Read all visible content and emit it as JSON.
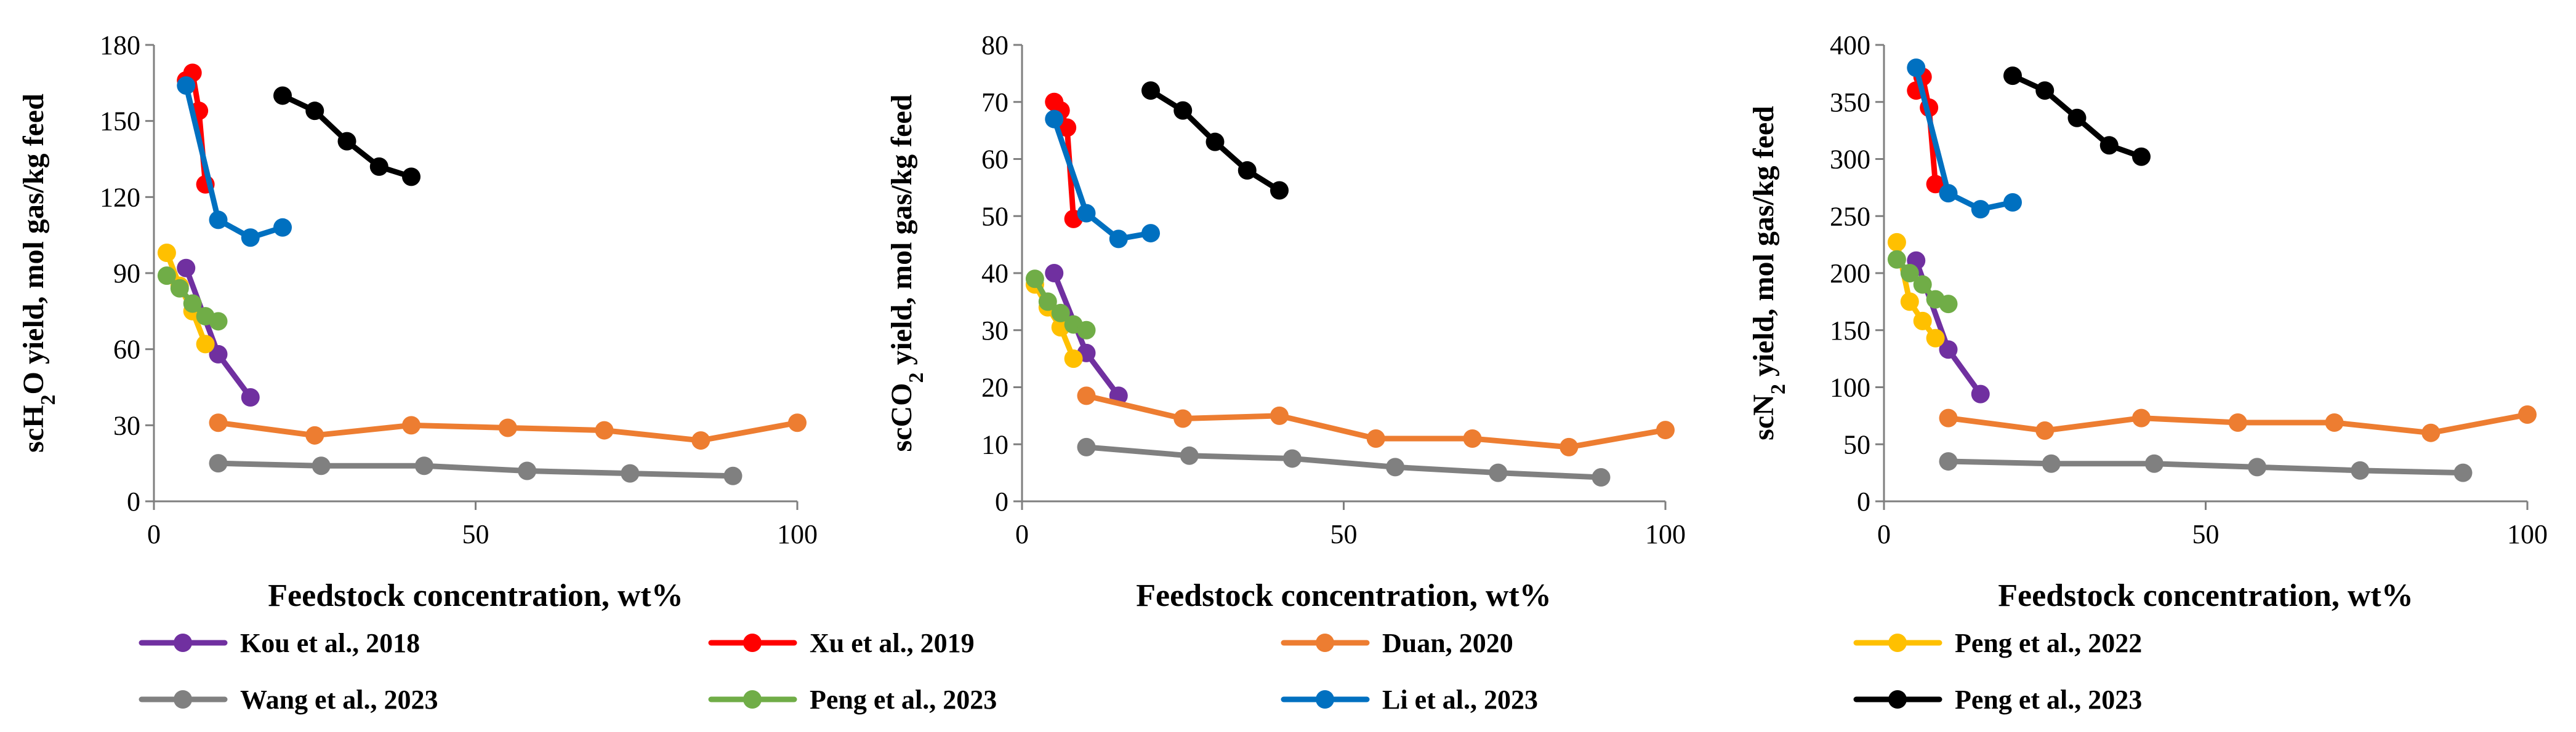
{
  "legend": [
    {
      "name": "Kou et al., 2018",
      "color": "#7030A0"
    },
    {
      "name": "Xu et al., 2019",
      "color": "#FF0000"
    },
    {
      "name": "Duan, 2020",
      "color": "#ED7D31"
    },
    {
      "name": "Peng et al., 2022",
      "color": "#FFC000"
    },
    {
      "name": "Wang et al., 2023",
      "color": "#808080"
    },
    {
      "name": "Peng et al., 2023",
      "color": "#70AD47"
    },
    {
      "name": "Li et al., 2023",
      "color": "#0070C0"
    },
    {
      "name": "Peng et al., 2023",
      "color": "#000000"
    }
  ],
  "chart_data": [
    {
      "type": "line",
      "xlabel": "Feedstock concentration, wt%",
      "ylabel": {
        "pre": "scH",
        "sub": "2",
        "post": "O yield, mol gas/kg feed"
      },
      "xlim": [
        0,
        100
      ],
      "ylim": [
        0,
        180
      ],
      "xticks": [
        0,
        50,
        100
      ],
      "yticks": [
        0,
        30,
        60,
        90,
        120,
        150,
        180
      ],
      "grid": false,
      "legend_position": "bottom",
      "series": [
        {
          "name": "Kou et al., 2018",
          "color": "#7030A0",
          "x": [
            5,
            10,
            15
          ],
          "y": [
            92,
            58,
            41
          ]
        },
        {
          "name": "Xu et al., 2019",
          "color": "#FF0000",
          "x": [
            5,
            6,
            7,
            8
          ],
          "y": [
            166,
            169,
            154,
            125
          ]
        },
        {
          "name": "Duan, 2020",
          "color": "#ED7D31",
          "x": [
            10,
            25,
            40,
            55,
            70,
            85,
            100
          ],
          "y": [
            31,
            26,
            30,
            29,
            28,
            24,
            31
          ]
        },
        {
          "name": "Peng et al., 2022",
          "color": "#FFC000",
          "x": [
            2,
            4,
            6,
            8
          ],
          "y": [
            98,
            85,
            75,
            62
          ]
        },
        {
          "name": "Wang et al., 2023",
          "color": "#808080",
          "x": [
            10,
            26,
            42,
            58,
            74,
            90
          ],
          "y": [
            15,
            14,
            14,
            12,
            11,
            10
          ]
        },
        {
          "name": "Peng et al., 2023",
          "color": "#70AD47",
          "x": [
            2,
            4,
            6,
            8,
            10
          ],
          "y": [
            89,
            84,
            78,
            73,
            71
          ]
        },
        {
          "name": "Li et al., 2023",
          "color": "#0070C0",
          "x": [
            5,
            10,
            15,
            20
          ],
          "y": [
            164,
            111,
            104,
            108
          ]
        },
        {
          "name": "Peng et al., 2023",
          "color": "#000000",
          "x": [
            20,
            25,
            30,
            35,
            40
          ],
          "y": [
            160,
            154,
            142,
            132,
            128
          ]
        }
      ]
    },
    {
      "type": "line",
      "xlabel": "Feedstock concentration, wt%",
      "ylabel": {
        "pre": "scCO",
        "sub": "2",
        "post": " yield, mol gas/kg feed"
      },
      "xlim": [
        0,
        100
      ],
      "ylim": [
        0,
        80
      ],
      "xticks": [
        0,
        50,
        100
      ],
      "yticks": [
        0,
        10,
        20,
        30,
        40,
        50,
        60,
        70,
        80
      ],
      "grid": false,
      "legend_position": "bottom",
      "series": [
        {
          "name": "Kou et al., 2018",
          "color": "#7030A0",
          "x": [
            5,
            10,
            15
          ],
          "y": [
            40,
            26,
            18.5
          ]
        },
        {
          "name": "Xu et al., 2019",
          "color": "#FF0000",
          "x": [
            5,
            6,
            7,
            8
          ],
          "y": [
            70,
            68.5,
            65.5,
            49.5
          ]
        },
        {
          "name": "Duan, 2020",
          "color": "#ED7D31",
          "x": [
            10,
            25,
            40,
            55,
            70,
            85,
            100
          ],
          "y": [
            18.5,
            14.5,
            15,
            11,
            11,
            9.5,
            12.5
          ]
        },
        {
          "name": "Peng et al., 2022",
          "color": "#FFC000",
          "x": [
            2,
            4,
            6,
            8
          ],
          "y": [
            38,
            34,
            30.5,
            25
          ]
        },
        {
          "name": "Wang et al., 2023",
          "color": "#808080",
          "x": [
            10,
            26,
            42,
            58,
            74,
            90
          ],
          "y": [
            9.5,
            8,
            7.5,
            6,
            5,
            4.2
          ]
        },
        {
          "name": "Peng et al., 2023",
          "color": "#70AD47",
          "x": [
            2,
            4,
            6,
            8,
            10
          ],
          "y": [
            39,
            35,
            33,
            31,
            30
          ]
        },
        {
          "name": "Li et al., 2023",
          "color": "#0070C0",
          "x": [
            5,
            10,
            15,
            20
          ],
          "y": [
            67,
            50.5,
            46,
            47
          ]
        },
        {
          "name": "Peng et al., 2023",
          "color": "#000000",
          "x": [
            20,
            25,
            30,
            35,
            40
          ],
          "y": [
            72,
            68.5,
            63,
            58,
            54.5
          ]
        }
      ]
    },
    {
      "type": "line",
      "xlabel": "Feedstock concentration, wt%",
      "ylabel": {
        "pre": "scN",
        "sub": "2",
        "post": " yield, mol gas/kg feed"
      },
      "xlim": [
        0,
        100
      ],
      "ylim": [
        0,
        400
      ],
      "xticks": [
        0,
        50,
        100
      ],
      "yticks": [
        0,
        50,
        100,
        150,
        200,
        250,
        300,
        350,
        400
      ],
      "grid": false,
      "legend_position": "bottom",
      "series": [
        {
          "name": "Kou et al., 2018",
          "color": "#7030A0",
          "x": [
            5,
            10,
            15
          ],
          "y": [
            211,
            133,
            94
          ]
        },
        {
          "name": "Xu et al., 2019",
          "color": "#FF0000",
          "x": [
            5,
            6,
            7,
            8
          ],
          "y": [
            360,
            372,
            345,
            278
          ]
        },
        {
          "name": "Duan, 2020",
          "color": "#ED7D31",
          "x": [
            10,
            25,
            40,
            55,
            70,
            85,
            100
          ],
          "y": [
            73,
            62,
            73,
            69,
            69,
            60,
            76
          ]
        },
        {
          "name": "Peng et al., 2022",
          "color": "#FFC000",
          "x": [
            2,
            4,
            6,
            8
          ],
          "y": [
            227,
            175,
            158,
            143
          ]
        },
        {
          "name": "Wang et al., 2023",
          "color": "#808080",
          "x": [
            10,
            26,
            42,
            58,
            74,
            90
          ],
          "y": [
            35,
            33,
            33,
            30,
            27,
            25
          ]
        },
        {
          "name": "Peng et al., 2023",
          "color": "#70AD47",
          "x": [
            2,
            4,
            6,
            8,
            10
          ],
          "y": [
            212,
            200,
            190,
            177,
            173
          ]
        },
        {
          "name": "Li et al., 2023",
          "color": "#0070C0",
          "x": [
            5,
            10,
            15,
            20
          ],
          "y": [
            380,
            270,
            256,
            262
          ]
        },
        {
          "name": "Peng et al., 2023",
          "color": "#000000",
          "x": [
            20,
            25,
            30,
            35,
            40
          ],
          "y": [
            373,
            360,
            336,
            312,
            302
          ]
        }
      ]
    }
  ]
}
